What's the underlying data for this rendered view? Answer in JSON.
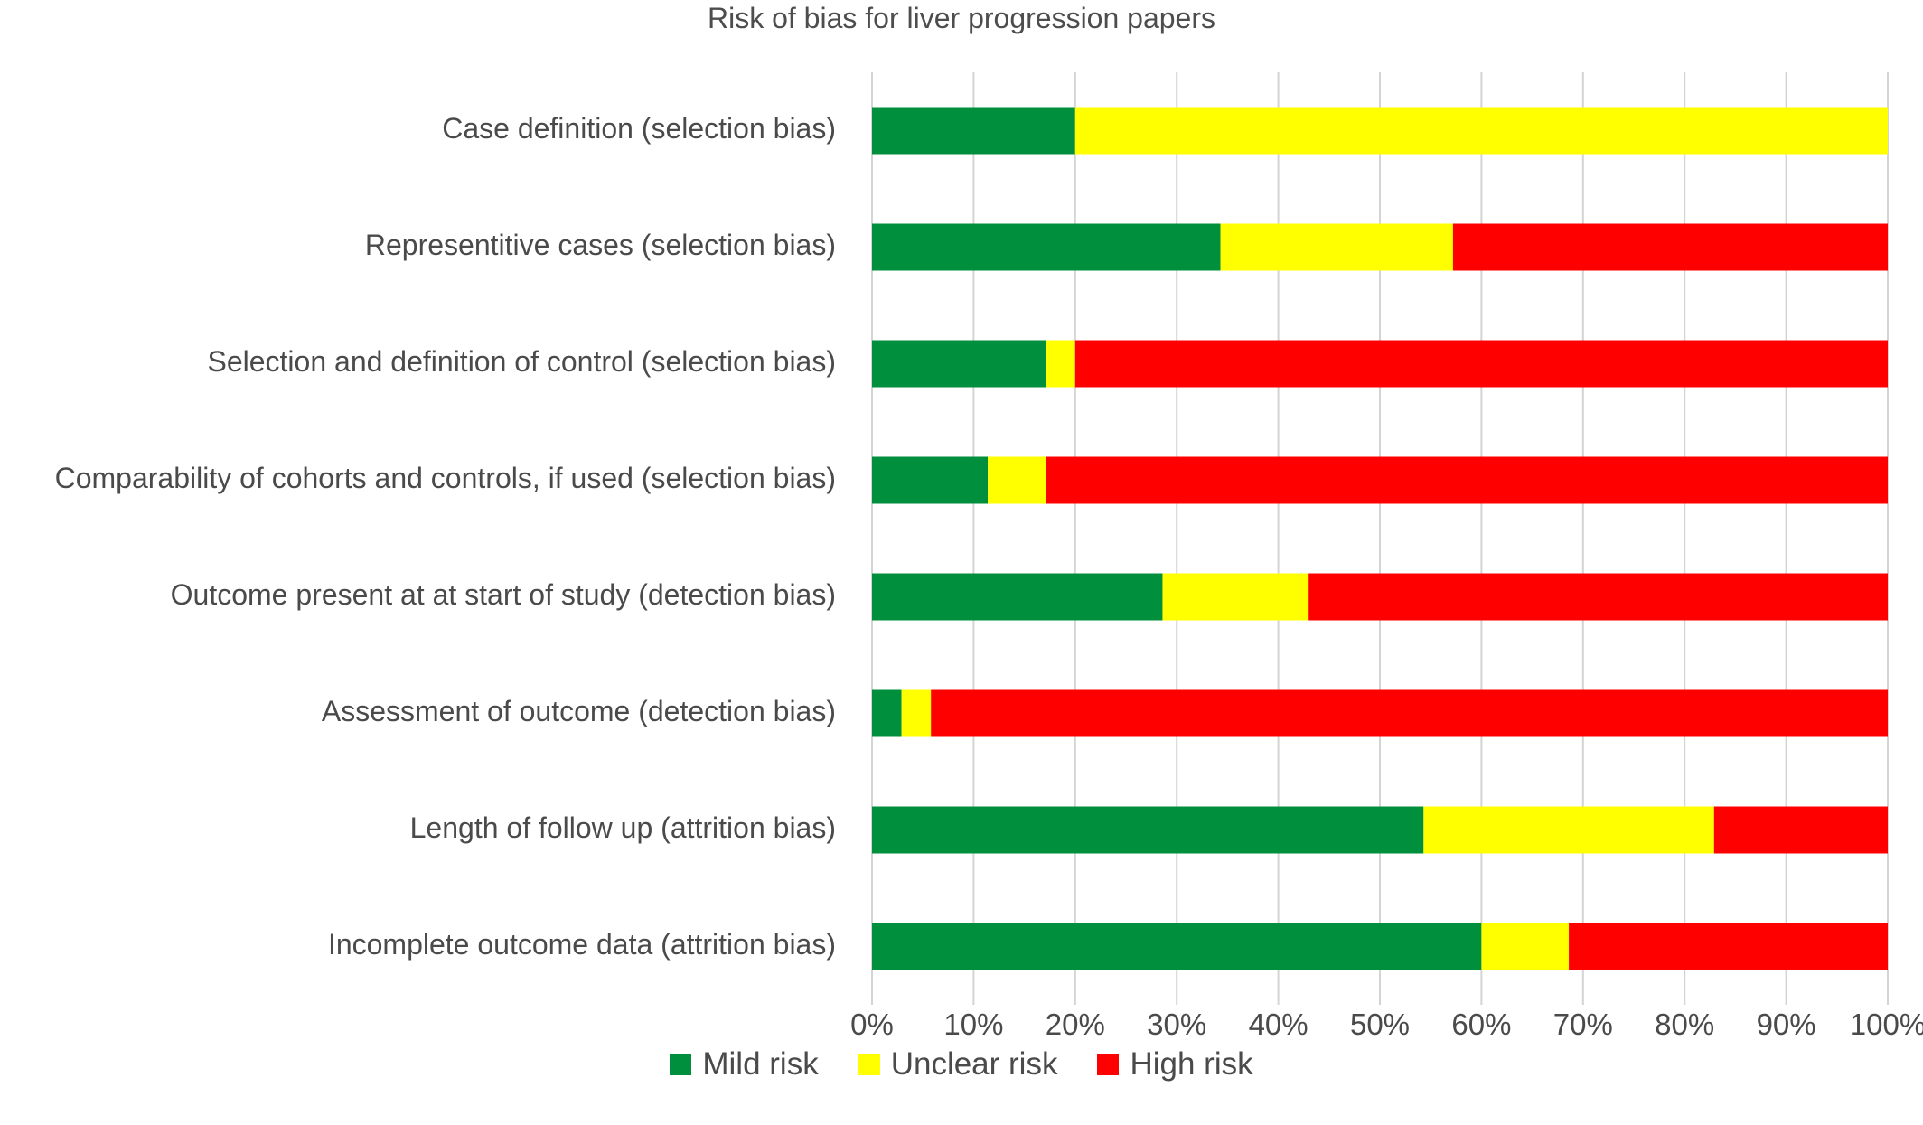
{
  "chart_data": {
    "type": "bar",
    "orientation": "horizontal",
    "stacked": "percent",
    "title": "Risk of bias for liver progression papers",
    "categories": [
      "Case definition (selection bias)",
      "Representitive cases (selection bias)",
      "Selection and definition of control (selection bias)",
      "Comparability of cohorts and controls, if used (selection bias)",
      "Outcome present at at start of study (detection bias)",
      "Assessment of outcome (detection bias)",
      "Length of follow up (attrition bias)",
      "Incomplete outcome data (attrition bias)"
    ],
    "series": [
      {
        "name": "Mild risk",
        "color": "#008f3c",
        "values": [
          20,
          34.3,
          17.1,
          11.4,
          28.6,
          2.9,
          54.3,
          60
        ]
      },
      {
        "name": "Unclear risk",
        "color": "#ffff00",
        "values": [
          80,
          22.9,
          2.9,
          5.7,
          14.3,
          2.9,
          28.6,
          8.6
        ]
      },
      {
        "name": "High risk",
        "color": "#ff0000",
        "values": [
          0,
          42.8,
          80,
          82.9,
          57.1,
          94.2,
          17.1,
          31.4
        ]
      }
    ],
    "xlim": [
      0,
      100
    ],
    "xticks": [
      "0%",
      "10%",
      "20%",
      "30%",
      "40%",
      "50%",
      "60%",
      "70%",
      "80%",
      "90%",
      "100%"
    ],
    "grid": true,
    "legend_position": "bottom"
  }
}
